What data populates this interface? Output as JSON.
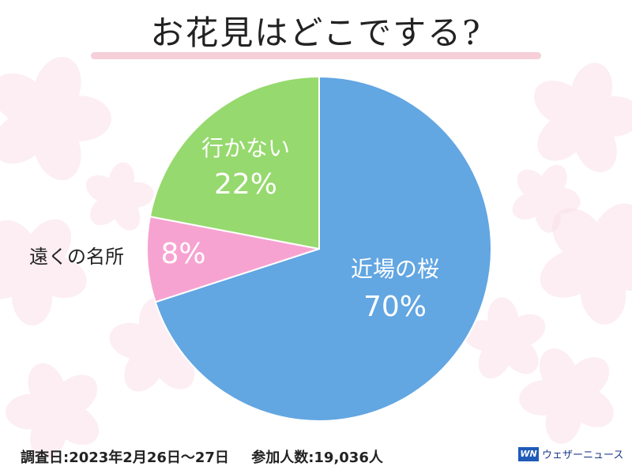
{
  "title": "お花見はどこでする?",
  "chart_data": {
    "type": "pie",
    "slices": [
      {
        "label": "近場の桜",
        "value": 70,
        "value_label": "70%",
        "color": "#62a6e2"
      },
      {
        "label": "遠くの名所",
        "value": 8,
        "value_label": "8%",
        "color": "#f7a3d1"
      },
      {
        "label": "行かない",
        "value": 22,
        "value_label": "22%",
        "color": "#96d96e"
      }
    ]
  },
  "footer": {
    "survey_date": "調査日:2023年2月26日～27日",
    "participants": "参加人数:19,036人"
  },
  "brand": {
    "logo_text": "WN",
    "name": "ウェザーニュース"
  }
}
